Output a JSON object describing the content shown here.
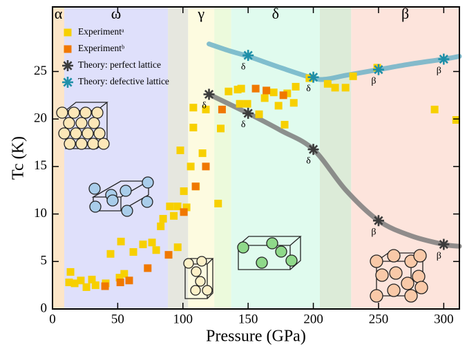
{
  "chart_data": {
    "type": "scatter",
    "xlabel": "Pressure (GPa)",
    "ylabel": "Tc (K)",
    "xlim": [
      0,
      312
    ],
    "ylim": [
      0,
      31.8
    ],
    "xticks": [
      0,
      50,
      100,
      150,
      200,
      250,
      300
    ],
    "yticks": [
      0,
      5,
      10,
      15,
      20,
      25
    ],
    "phases": [
      {
        "label": "α",
        "range": [
          0,
          9
        ],
        "color": "#fde6c8"
      },
      {
        "label": "ω",
        "range": [
          9,
          88.5
        ],
        "color": "#dfe0fb"
      },
      {
        "label": "γ",
        "range": [
          104,
          124
        ],
        "color": "#fdfbe0"
      },
      {
        "label": "δ",
        "range": [
          137,
          205
        ],
        "color": "#e0fbee"
      },
      {
        "label": "β",
        "range": [
          229,
          312
        ],
        "color": "#fde4dc"
      }
    ],
    "transition_bands": [
      {
        "range": [
          88.5,
          104
        ],
        "color": "#e6e7df"
      },
      {
        "range": [
          124,
          137
        ],
        "color": "#ecfadc"
      },
      {
        "range": [
          205,
          229
        ],
        "color": "#dcebd8"
      }
    ],
    "curves": [
      {
        "color": "#7d7d7d",
        "x": [
          120,
          150,
          175,
          200,
          225,
          250,
          275,
          300,
          312
        ],
        "y": [
          22.6,
          20.6,
          18.8,
          16.8,
          12.5,
          9.3,
          7.7,
          6.8,
          6.6
        ]
      },
      {
        "color": "#6fb3c8",
        "x": [
          120,
          135,
          150,
          175,
          200,
          210,
          225,
          250,
          275,
          300,
          312
        ],
        "y": [
          27.9,
          27.2,
          26.6,
          25.4,
          24.3,
          24.2,
          24.6,
          25.2,
          25.8,
          26.3,
          26.6
        ]
      }
    ],
    "series": [
      {
        "name": "Experimentᵃ",
        "marker": "square",
        "color": "#f7d000",
        "x": [
          13.8,
          12.7,
          17,
          21.7,
          26,
          30.2,
          33,
          40.8,
          44.5,
          52.5,
          55,
          51.4,
          62,
          69.4,
          76.3,
          79.5,
          83,
          84.8,
          90,
          95.9,
          93,
          96,
          98,
          100.7,
          102.8,
          106,
          108,
          108,
          110,
          115,
          117.6,
          127,
          129,
          135,
          142,
          143.6,
          144.7,
          149.4,
          158.4,
          162.7,
          169.6,
          173.3,
          178,
          180,
          185,
          186.5,
          197,
          211,
          216.7,
          224.7,
          230.5,
          249,
          293,
          309.5
        ],
        "y": [
          3.9,
          2.8,
          2.7,
          3.0,
          2.3,
          3.1,
          2.5,
          2.7,
          5.8,
          7.1,
          3.7,
          3.3,
          6.0,
          6.8,
          7.0,
          6.2,
          8.7,
          9.5,
          10.8,
          10.8,
          9.8,
          6.5,
          16.7,
          12.4,
          10.7,
          15.0,
          19.1,
          21.2,
          12.9,
          16.4,
          21.0,
          11.1,
          19.0,
          22.9,
          23.1,
          21.6,
          23.2,
          21.6,
          20.5,
          22.2,
          22.8,
          21.4,
          19.4,
          22.7,
          21.7,
          23.4,
          24.3,
          23.7,
          23.3,
          23.3,
          24.5,
          25.4,
          21.0,
          19.9
        ]
      },
      {
        "name": "Experimentᵇ",
        "marker": "square",
        "color": "#f07800",
        "x": [
          40.3,
          52,
          58.8,
          73,
          89,
          100.7,
          109.7,
          117.6,
          130,
          155.8,
          164,
          177
        ],
        "y": [
          2.4,
          2.8,
          3.0,
          4.3,
          5.7,
          10.2,
          12.9,
          15.0,
          21.0,
          23.2,
          23.0,
          22.5
        ]
      },
      {
        "name": "Theory: perfect lattice",
        "marker": "star",
        "color": "#3c3c3c",
        "x": [
          120,
          150,
          200,
          250,
          300
        ],
        "y": [
          22.6,
          20.6,
          16.8,
          9.3,
          6.8
        ],
        "point_labels": [
          "δ",
          "δ",
          "δ",
          "β",
          "β"
        ]
      },
      {
        "name": "Theory: defective lattice",
        "marker": "star",
        "color": "#1f8fa8",
        "x": [
          150,
          200,
          250,
          300
        ],
        "y": [
          26.7,
          24.4,
          25.2,
          26.3
        ],
        "point_labels": [
          "δ",
          "δ",
          "β",
          "β"
        ]
      }
    ]
  }
}
